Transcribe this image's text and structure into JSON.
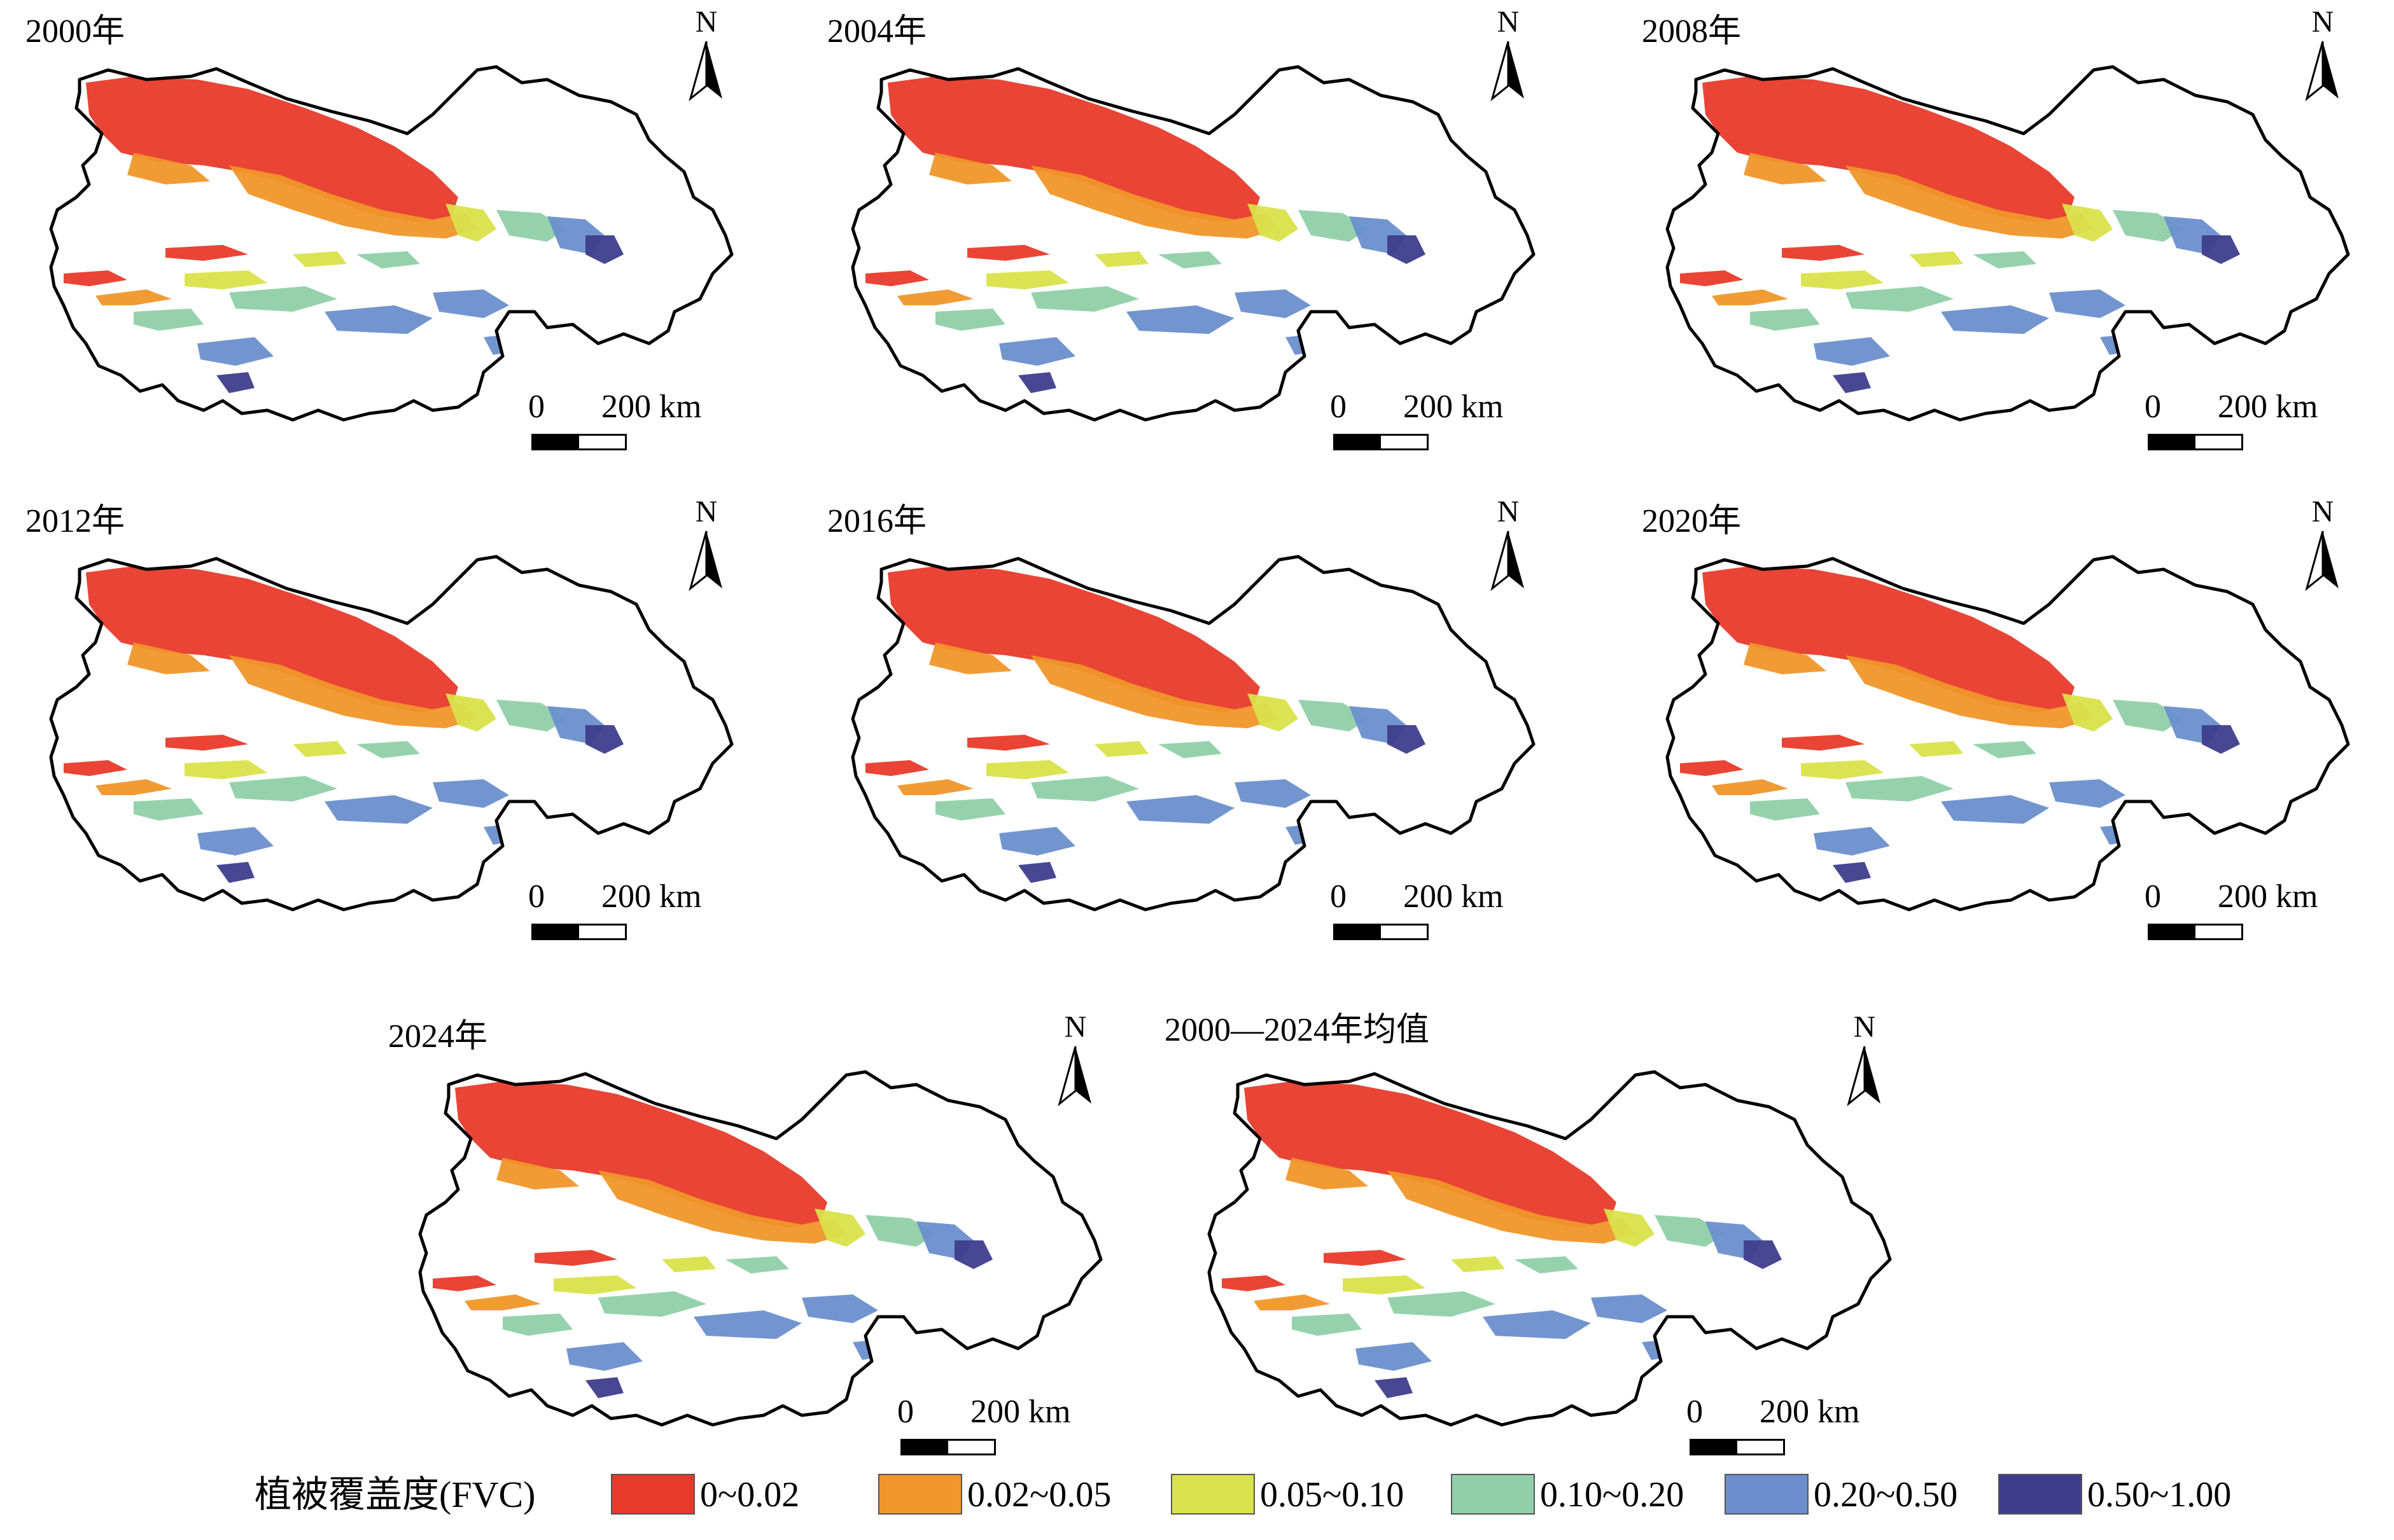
{
  "panels": [
    {
      "title": "2000年",
      "year": 2000
    },
    {
      "title": "2004年",
      "year": 2004
    },
    {
      "title": "2008年",
      "year": 2008
    },
    {
      "title": "2012年",
      "year": 2012
    },
    {
      "title": "2016年",
      "year": 2016
    },
    {
      "title": "2020年",
      "year": 2020
    },
    {
      "title": "2024年",
      "year": 2024
    },
    {
      "title": "2000—2024年均值",
      "year": "mean"
    }
  ],
  "north_arrow": {
    "label": "N"
  },
  "scale_bar": {
    "zero": "0",
    "distance": "200 km"
  },
  "legend": {
    "title": "植被覆盖度(FVC)",
    "classes": [
      {
        "label": "0~0.02",
        "color": "#e83a2a"
      },
      {
        "label": "0.02~0.05",
        "color": "#f0962a"
      },
      {
        "label": "0.05~0.10",
        "color": "#d9e24a"
      },
      {
        "label": "0.10~0.20",
        "color": "#8fd0a8"
      },
      {
        "label": "0.20~0.50",
        "color": "#6a8fcc"
      },
      {
        "label": "0.50~1.00",
        "color": "#3e3d8c"
      }
    ]
  },
  "colors": {
    "boundary": "#000000",
    "background": "#ffffff"
  }
}
